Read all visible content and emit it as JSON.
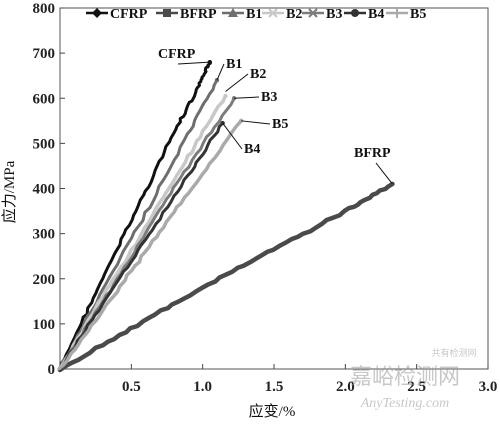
{
  "chart_data": {
    "type": "line",
    "title": "",
    "xlabel": "应变/%",
    "ylabel": "应力/MPa",
    "xlim": [
      0,
      3.0
    ],
    "ylim": [
      0,
      800
    ],
    "xticks": [
      "0.5",
      "1.0",
      "1.5",
      "2.0",
      "2.5",
      "3.0"
    ],
    "xtick_values": [
      0.5,
      1.0,
      1.5,
      2.0,
      2.5,
      3.0
    ],
    "yticks": [
      "0",
      "100",
      "200",
      "300",
      "400",
      "500",
      "600",
      "700",
      "800"
    ],
    "ytick_values": [
      0,
      100,
      200,
      300,
      400,
      500,
      600,
      700,
      800
    ],
    "grid": false,
    "legend_position": "top",
    "series": [
      {
        "name": "CFRP",
        "color": "#111111",
        "marker": "diamond",
        "width": 3.0,
        "x": [
          0,
          0.2,
          0.4,
          0.6,
          0.8,
          0.95,
          1.02,
          1.05
        ],
        "y": [
          0,
          135,
          265,
          395,
          525,
          610,
          660,
          680
        ]
      },
      {
        "name": "BFRP",
        "color": "#4a4a4a",
        "marker": "square",
        "width": 4.5,
        "x": [
          0,
          0.5,
          1.0,
          1.5,
          2.0,
          2.33
        ],
        "y": [
          0,
          90,
          180,
          265,
          350,
          410
        ]
      },
      {
        "name": "B1",
        "color": "#6e6e6e",
        "marker": "triangle",
        "width": 3.0,
        "x": [
          0,
          0.3,
          0.6,
          0.9,
          1.1
        ],
        "y": [
          0,
          175,
          345,
          520,
          640
        ]
      },
      {
        "name": "B2",
        "color": "#c8c8c8",
        "marker": "x",
        "width": 3.5,
        "x": [
          0,
          0.3,
          0.6,
          0.9,
          1.16
        ],
        "y": [
          0,
          160,
          315,
          470,
          605
        ]
      },
      {
        "name": "B3",
        "color": "#7c7c7c",
        "marker": "x",
        "width": 3.0,
        "x": [
          0,
          0.3,
          0.6,
          0.9,
          1.22
        ],
        "y": [
          0,
          150,
          300,
          450,
          600
        ]
      },
      {
        "name": "B4",
        "color": "#333333",
        "marker": "circle",
        "width": 3.0,
        "x": [
          0,
          0.3,
          0.6,
          0.9,
          1.14
        ],
        "y": [
          0,
          145,
          285,
          430,
          545
        ]
      },
      {
        "name": "B5",
        "color": "#aaaaaa",
        "marker": "plus",
        "width": 3.5,
        "x": [
          0,
          0.3,
          0.6,
          0.9,
          1.27
        ],
        "y": [
          0,
          130,
          260,
          390,
          550
        ]
      }
    ],
    "annotations": [
      {
        "text": "CFRP",
        "x": 1.05,
        "y": 680
      },
      {
        "text": "B1",
        "x": 1.1,
        "y": 640
      },
      {
        "text": "B2",
        "x": 1.16,
        "y": 615
      },
      {
        "text": "B3",
        "x": 1.22,
        "y": 600
      },
      {
        "text": "B5",
        "x": 1.27,
        "y": 550
      },
      {
        "text": "B4",
        "x": 1.14,
        "y": 545
      },
      {
        "text": "BFRP",
        "x": 2.33,
        "y": 410
      }
    ]
  },
  "watermark": {
    "title": "嘉峪检测网",
    "subtitle": "AnyTesting.com",
    "brand_small": "共有检测网"
  }
}
